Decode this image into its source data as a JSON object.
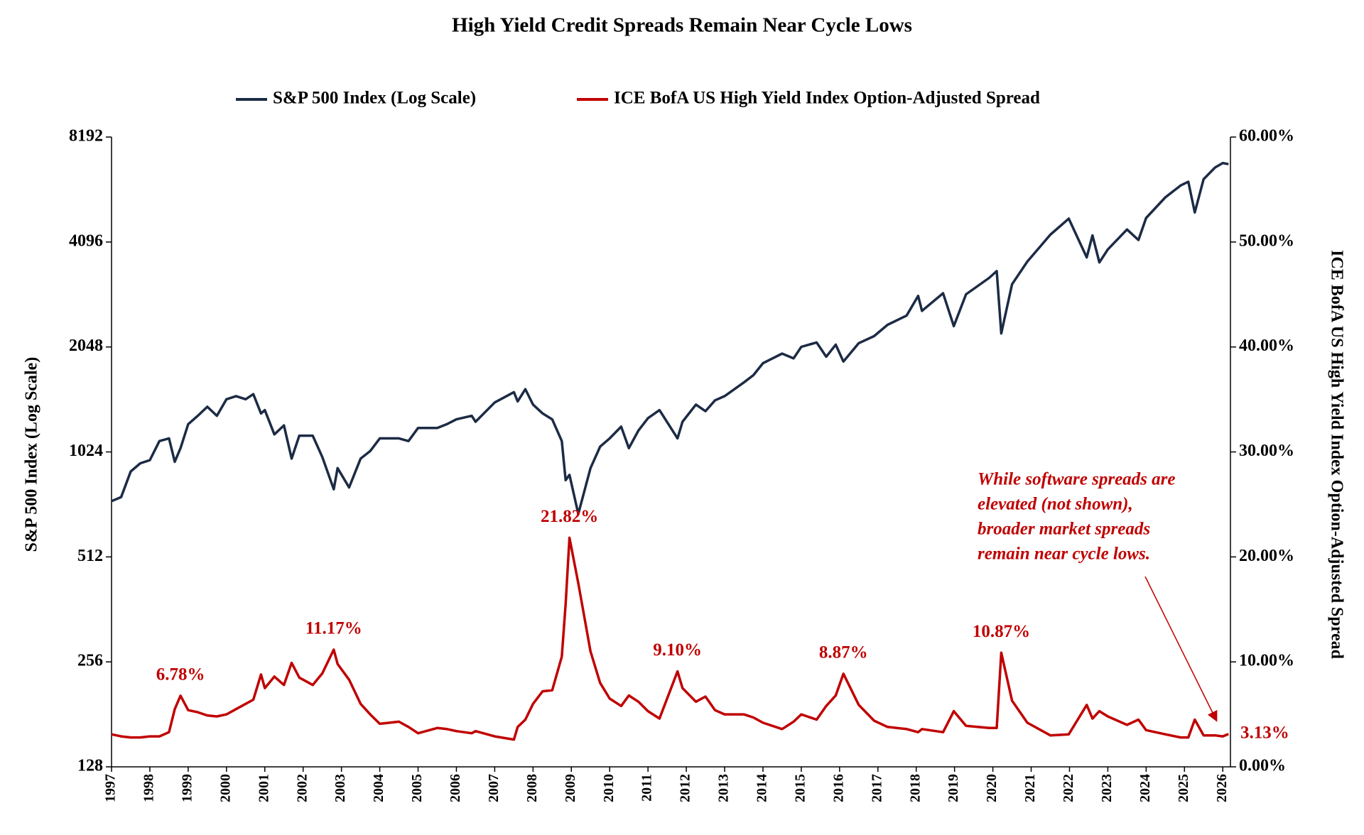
{
  "chart_data": {
    "type": "line",
    "title": "High Yield Credit Spreads Remain Near Cycle Lows",
    "y_label": "S&P 500 Index (Log Scale)",
    "y2_label": "ICE BofA US High Yield Index Option-Adjusted Spread",
    "ylog": true,
    "grid": false,
    "legend": "top",
    "xlim": [
      1997,
      2026.2
    ],
    "xticks": [
      1997,
      1998,
      1999,
      2000,
      2001,
      2002,
      2003,
      2004,
      2005,
      2006,
      2007,
      2008,
      2009,
      2010,
      2011,
      2012,
      2013,
      2014,
      2015,
      2016,
      2017,
      2018,
      2019,
      2020,
      2021,
      2022,
      2023,
      2024,
      2025,
      2026
    ],
    "ylim": [
      128,
      8192
    ],
    "yticks": [
      128,
      256,
      512,
      1024,
      2048,
      4096,
      8192
    ],
    "y2lim": [
      0,
      60
    ],
    "y2ticks": [
      {
        "value": 0,
        "label": "0.00%"
      },
      {
        "value": 10,
        "label": "10.00%"
      },
      {
        "value": 20,
        "label": "20.00%"
      },
      {
        "value": 30,
        "label": "30.00%"
      },
      {
        "value": 40,
        "label": "40.00%"
      },
      {
        "value": 50,
        "label": "50.00%"
      },
      {
        "value": 60,
        "label": "60.00%"
      }
    ],
    "x": [
      1997.0,
      1997.25,
      1997.5,
      1997.75,
      1998.0,
      1998.25,
      1998.5,
      1998.65,
      1998.8,
      1999.0,
      1999.25,
      1999.5,
      1999.75,
      2000.0,
      2000.25,
      2000.5,
      2000.7,
      2000.9,
      2001.0,
      2001.25,
      2001.5,
      2001.7,
      2001.9,
      2002.25,
      2002.5,
      2002.8,
      2002.9,
      2003.2,
      2003.5,
      2003.75,
      2004.0,
      2004.5,
      2004.75,
      2005.0,
      2005.5,
      2005.75,
      2006.0,
      2006.4,
      2006.5,
      2007.0,
      2007.5,
      2007.6,
      2007.8,
      2008.0,
      2008.25,
      2008.5,
      2008.75,
      2008.85,
      2008.95,
      2009.18,
      2009.5,
      2009.75,
      2010.0,
      2010.3,
      2010.5,
      2010.75,
      2011.0,
      2011.3,
      2011.77,
      2011.9,
      2012.25,
      2012.5,
      2012.75,
      2013.0,
      2013.5,
      2013.75,
      2014.0,
      2014.5,
      2014.8,
      2015.0,
      2015.4,
      2015.65,
      2015.9,
      2016.1,
      2016.5,
      2016.9,
      2017.25,
      2017.75,
      2018.05,
      2018.15,
      2018.7,
      2018.98,
      2019.3,
      2019.9,
      2020.1,
      2020.22,
      2020.5,
      2020.9,
      2021.5,
      2021.98,
      2022.45,
      2022.6,
      2022.78,
      2023.0,
      2023.5,
      2023.8,
      2024.0,
      2024.5,
      2024.9,
      2025.1,
      2025.27,
      2025.5,
      2025.8,
      2026.0,
      2026.15
    ],
    "series": [
      {
        "name": "S&P 500 Index (Log Scale)",
        "color": "#1c2b45",
        "axis": "y",
        "values": [
          740,
          760,
          900,
          950,
          970,
          1100,
          1120,
          960,
          1050,
          1230,
          1300,
          1380,
          1300,
          1450,
          1480,
          1450,
          1500,
          1320,
          1350,
          1150,
          1220,
          980,
          1140,
          1140,
          990,
          800,
          920,
          810,
          980,
          1030,
          1120,
          1120,
          1100,
          1200,
          1200,
          1230,
          1270,
          1300,
          1250,
          1420,
          1520,
          1430,
          1550,
          1400,
          1320,
          1270,
          1100,
          850,
          880,
          680,
          920,
          1060,
          1120,
          1210,
          1050,
          1180,
          1280,
          1350,
          1120,
          1250,
          1400,
          1340,
          1440,
          1480,
          1620,
          1700,
          1840,
          1960,
          1900,
          2050,
          2110,
          1920,
          2080,
          1860,
          2100,
          2200,
          2370,
          2520,
          2870,
          2600,
          2920,
          2350,
          2900,
          3230,
          3380,
          2240,
          3100,
          3600,
          4300,
          4780,
          3700,
          4280,
          3580,
          3900,
          4450,
          4150,
          4800,
          5500,
          5950,
          6100,
          4980,
          6200,
          6700,
          6900,
          6850
        ]
      },
      {
        "name": "ICE BofA US High Yield Index Option-Adjusted Spread",
        "color": "#c00000",
        "axis": "y2",
        "values": [
          3.1,
          2.9,
          2.8,
          2.8,
          2.9,
          2.9,
          3.3,
          5.5,
          6.78,
          5.4,
          5.2,
          4.9,
          4.8,
          5.0,
          5.5,
          6.0,
          6.4,
          8.8,
          7.5,
          8.6,
          7.8,
          9.9,
          8.5,
          7.8,
          8.9,
          11.17,
          9.8,
          8.3,
          6.0,
          5.0,
          4.1,
          4.3,
          3.8,
          3.2,
          3.7,
          3.6,
          3.4,
          3.2,
          3.4,
          2.9,
          2.6,
          3.8,
          4.5,
          6.0,
          7.2,
          7.3,
          10.5,
          15.5,
          21.82,
          17.5,
          11.0,
          8.0,
          6.5,
          5.8,
          6.8,
          6.2,
          5.3,
          4.6,
          9.1,
          7.5,
          6.2,
          6.7,
          5.4,
          5.0,
          5.0,
          4.7,
          4.2,
          3.6,
          4.3,
          5.0,
          4.5,
          5.8,
          6.8,
          8.87,
          5.9,
          4.4,
          3.8,
          3.6,
          3.3,
          3.6,
          3.3,
          5.3,
          3.9,
          3.7,
          3.7,
          10.87,
          6.3,
          4.2,
          3.0,
          3.1,
          5.9,
          4.6,
          5.3,
          4.8,
          4.0,
          4.5,
          3.5,
          3.1,
          2.8,
          2.8,
          4.5,
          3.0,
          3.0,
          2.9,
          3.13
        ],
        "value_labels": [
          null,
          null,
          null,
          null,
          null,
          null,
          null,
          null,
          "6.78%",
          null,
          null,
          null,
          null,
          null,
          null,
          null,
          null,
          null,
          null,
          null,
          null,
          null,
          null,
          null,
          null,
          "11.17%",
          null,
          null,
          null,
          null,
          null,
          null,
          null,
          null,
          null,
          null,
          null,
          null,
          null,
          null,
          null,
          null,
          null,
          null,
          null,
          null,
          null,
          null,
          "21.82%",
          null,
          null,
          null,
          null,
          null,
          null,
          null,
          null,
          null,
          "9.10%",
          null,
          null,
          null,
          null,
          null,
          null,
          null,
          null,
          null,
          null,
          null,
          null,
          null,
          null,
          "8.87%",
          null,
          null,
          null,
          null,
          null,
          null,
          null,
          null,
          null,
          null,
          null,
          "10.87%",
          null,
          null,
          null,
          null,
          null,
          null,
          null,
          null,
          null,
          null,
          null,
          null,
          null,
          null,
          null,
          null,
          null,
          null,
          "3.13%"
        ]
      }
    ],
    "annotation": [
      "While software spreads are",
      "elevated (not shown),",
      "broader market spreads",
      "remain near cycle lows."
    ]
  }
}
